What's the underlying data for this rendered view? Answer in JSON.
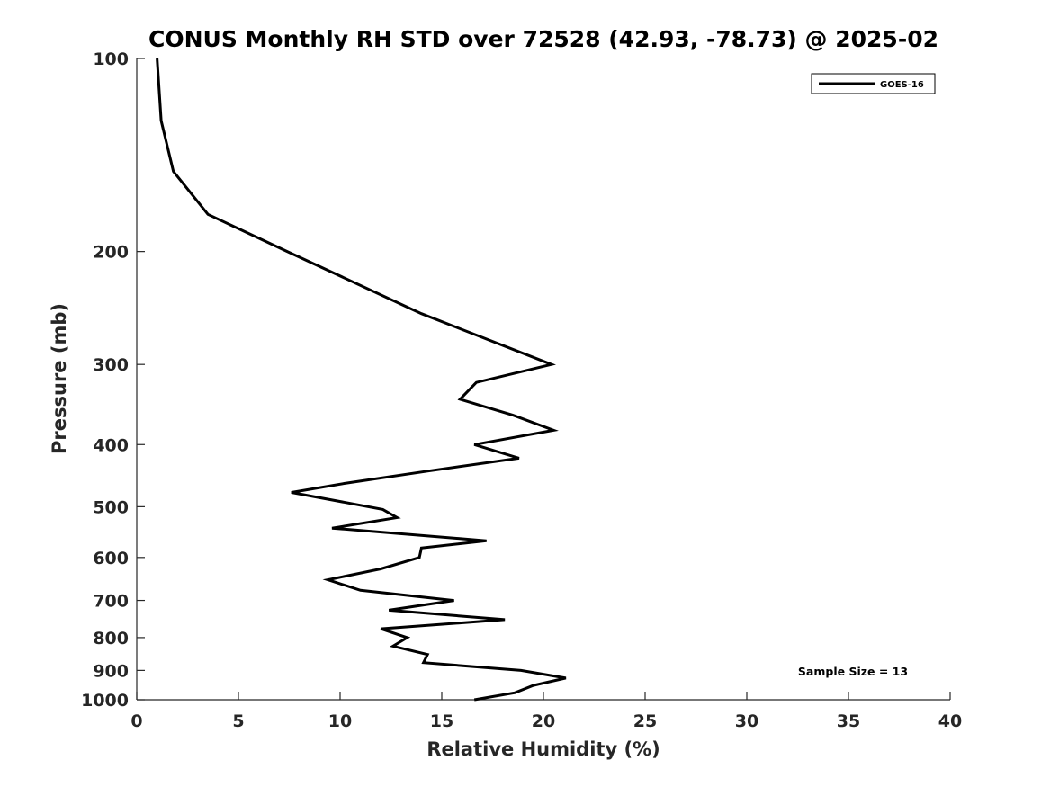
{
  "chart_data": {
    "type": "line",
    "title": "CONUS Monthly RH STD over 72528 (42.93, -78.73) @ 2025-02",
    "xlabel": "Relative Humidity (%)",
    "ylabel": "Pressure (mb)",
    "xlim": [
      0,
      40
    ],
    "ylim": [
      100,
      1000
    ],
    "yscale": "log",
    "y_reversed": true,
    "x_ticks": [
      "0",
      "5",
      "10",
      "15",
      "20",
      "25",
      "30",
      "35",
      "40"
    ],
    "y_ticks": [
      "100",
      "200",
      "300",
      "400",
      "500",
      "600",
      "700",
      "800",
      "900",
      "1000"
    ],
    "grid": false,
    "legend_position": "top-right",
    "annotation": "Sample Size = 13",
    "series": [
      {
        "name": "GOES-16",
        "color": "#000000",
        "points": [
          {
            "x": 1.0,
            "y": 100
          },
          {
            "x": 1.2,
            "y": 125
          },
          {
            "x": 1.8,
            "y": 150
          },
          {
            "x": 3.5,
            "y": 175
          },
          {
            "x": 7.4,
            "y": 200
          },
          {
            "x": 14.0,
            "y": 250
          },
          {
            "x": 20.4,
            "y": 300
          },
          {
            "x": 16.7,
            "y": 320
          },
          {
            "x": 15.9,
            "y": 340
          },
          {
            "x": 18.5,
            "y": 360
          },
          {
            "x": 20.5,
            "y": 380
          },
          {
            "x": 16.6,
            "y": 400
          },
          {
            "x": 18.8,
            "y": 420
          },
          {
            "x": 14.3,
            "y": 440
          },
          {
            "x": 10.2,
            "y": 460
          },
          {
            "x": 7.6,
            "y": 475
          },
          {
            "x": 12.1,
            "y": 505
          },
          {
            "x": 12.8,
            "y": 520
          },
          {
            "x": 9.6,
            "y": 540
          },
          {
            "x": 17.2,
            "y": 565
          },
          {
            "x": 14.0,
            "y": 580
          },
          {
            "x": 13.9,
            "y": 600
          },
          {
            "x": 12.0,
            "y": 625
          },
          {
            "x": 9.4,
            "y": 650
          },
          {
            "x": 11.0,
            "y": 675
          },
          {
            "x": 15.6,
            "y": 700
          },
          {
            "x": 12.4,
            "y": 725
          },
          {
            "x": 18.1,
            "y": 750
          },
          {
            "x": 12.0,
            "y": 775
          },
          {
            "x": 13.3,
            "y": 800
          },
          {
            "x": 12.6,
            "y": 825
          },
          {
            "x": 14.3,
            "y": 850
          },
          {
            "x": 14.1,
            "y": 875
          },
          {
            "x": 18.9,
            "y": 900
          },
          {
            "x": 21.1,
            "y": 925
          },
          {
            "x": 19.5,
            "y": 950
          },
          {
            "x": 18.6,
            "y": 975
          },
          {
            "x": 16.6,
            "y": 1000
          }
        ]
      }
    ]
  }
}
